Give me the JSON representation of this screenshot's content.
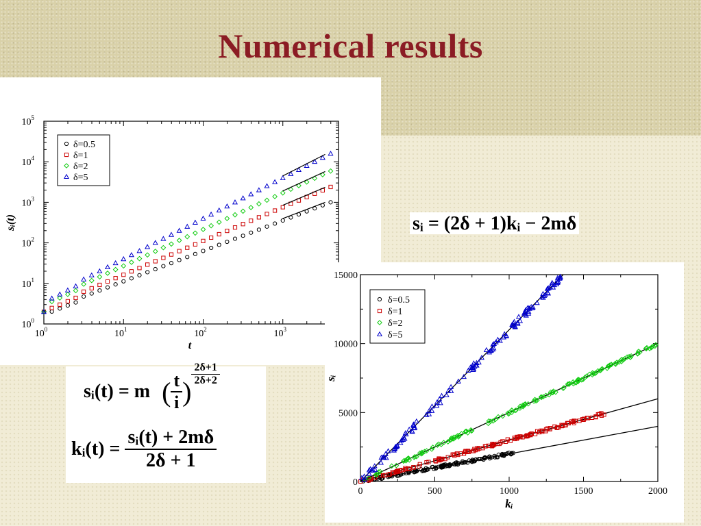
{
  "slide": {
    "title": "Numerical results"
  },
  "formulas": {
    "si_relation": "sᵢ = (2δ + 1)kᵢ − 2mδ",
    "si_t_lhs": "sᵢ(t) = m",
    "si_t_base_num": "t",
    "si_t_base_den": "i",
    "si_t_exp_num": "2δ+1",
    "si_t_exp_den": "2δ+2",
    "ki_t_lhs": "kᵢ(t) =",
    "ki_t_num": "sᵢ(t) + 2mδ",
    "ki_t_den": "2δ + 1"
  },
  "chart_data": [
    {
      "type": "scatter",
      "xscale": "log",
      "yscale": "log",
      "xlim": [
        1,
        5000
      ],
      "ylim": [
        1,
        100000
      ],
      "xlabel": "t",
      "ylabel": "sᵢ(t)",
      "x_ticks": [
        1,
        10,
        100,
        1000
      ],
      "x_tick_labels": [
        {
          "base": "10",
          "exp": "0"
        },
        {
          "base": "10",
          "exp": "1"
        },
        {
          "base": "10",
          "exp": "2"
        },
        {
          "base": "10",
          "exp": "3"
        }
      ],
      "y_ticks": [
        1,
        10,
        100,
        1000,
        10000,
        100000
      ],
      "y_tick_labels": [
        {
          "base": "10",
          "exp": "0"
        },
        {
          "base": "10",
          "exp": "1"
        },
        {
          "base": "10",
          "exp": "2"
        },
        {
          "base": "10",
          "exp": "3"
        },
        {
          "base": "10",
          "exp": "4"
        },
        {
          "base": "10",
          "exp": "5"
        }
      ],
      "legend_position": "top-left",
      "series": [
        {
          "name": "δ=0.5",
          "marker": "circle",
          "color": "#000000",
          "A": 2.0,
          "exponent": 0.75,
          "fit_start": 1000
        },
        {
          "name": "δ=1",
          "marker": "square",
          "color": "#cc0000",
          "A": 2.4,
          "exponent": 0.833,
          "fit_start": 1000
        },
        {
          "name": "δ=2",
          "marker": "diamond",
          "color": "#11cc11",
          "A": 3.4,
          "exponent": 0.9,
          "fit_start": 1000
        },
        {
          "name": "δ=5",
          "marker": "triangle",
          "color": "#0000cc",
          "A": 4.0,
          "exponent": 1.0,
          "fit_start": 1000
        }
      ]
    },
    {
      "type": "scatter",
      "xlim": [
        0,
        2000
      ],
      "ylim": [
        0,
        15000
      ],
      "xlabel": "kᵢ",
      "ylabel": "sᵢ",
      "x_ticks": [
        0,
        500,
        1000,
        1500,
        2000
      ],
      "y_ticks": [
        0,
        5000,
        10000,
        15000
      ],
      "legend_position": "top-left",
      "series": [
        {
          "name": "δ=0.5",
          "marker": "circle",
          "color": "#000000",
          "slope": 2,
          "max_k": 1050
        },
        {
          "name": "δ=1",
          "marker": "square",
          "color": "#cc0000",
          "slope": 3,
          "max_k": 1650
        },
        {
          "name": "δ=2",
          "marker": "diamond",
          "color": "#11cc11",
          "slope": 5,
          "max_k": 2000
        },
        {
          "name": "δ=5",
          "marker": "triangle",
          "color": "#0000cc",
          "slope": 11,
          "max_k": 1360
        }
      ]
    }
  ]
}
